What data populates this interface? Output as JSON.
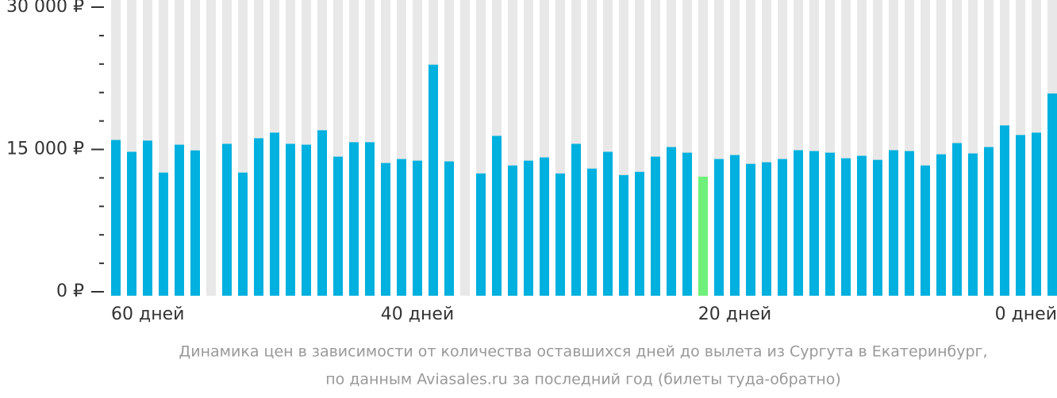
{
  "chart_data": {
    "type": "bar",
    "categories": [
      "60 дней",
      null,
      null,
      null,
      null,
      null,
      null,
      null,
      null,
      null,
      null,
      null,
      null,
      null,
      null,
      null,
      null,
      null,
      null,
      "40 дней",
      null,
      null,
      null,
      null,
      null,
      null,
      null,
      null,
      null,
      null,
      null,
      null,
      null,
      null,
      null,
      null,
      null,
      null,
      null,
      "20 дней",
      null,
      null,
      null,
      null,
      null,
      null,
      null,
      null,
      null,
      null,
      null,
      null,
      null,
      null,
      null,
      null,
      null,
      null,
      null,
      "0 дней"
    ],
    "values": [
      16000,
      14750,
      15930,
      12560,
      15500,
      14900,
      null,
      15590,
      12560,
      16180,
      16770,
      15590,
      15500,
      17020,
      14240,
      15760,
      15760,
      13570,
      13990,
      13820,
      23930,
      13740,
      null,
      12470,
      16430,
      13310,
      13820,
      14160,
      12470,
      15590,
      12980,
      14750,
      12300,
      12640,
      14240,
      15250,
      14660,
      12130,
      13990,
      14410,
      13480,
      13650,
      13990,
      14920,
      14830,
      14660,
      14070,
      14330,
      13900,
      14920,
      14830,
      13310,
      14490,
      15670,
      14580,
      15250,
      17530,
      16520,
      16770,
      20900
    ],
    "color": "#00b0de",
    "highlight": {
      "index": 37,
      "color": "#6ef07a"
    },
    "background_color": "#e8e8e8",
    "ylim": [
      0,
      30000
    ],
    "yticks": [
      {
        "value": 0,
        "label": "0 ₽"
      },
      {
        "value": 15000,
        "label": "15 000 ₽"
      },
      {
        "value": 30000,
        "label": "30 000 ₽"
      }
    ],
    "yminor_ticks": [
      3000,
      6000,
      9000,
      12000,
      18000,
      21000,
      24000,
      27000
    ],
    "caption": [
      "Динамика цен в зависимости от количества оставшихся дней до вылета из Сургута в Екатеринбург,",
      "по данным Aviasales.ru за последний год (билеты туда-обратно)"
    ]
  }
}
